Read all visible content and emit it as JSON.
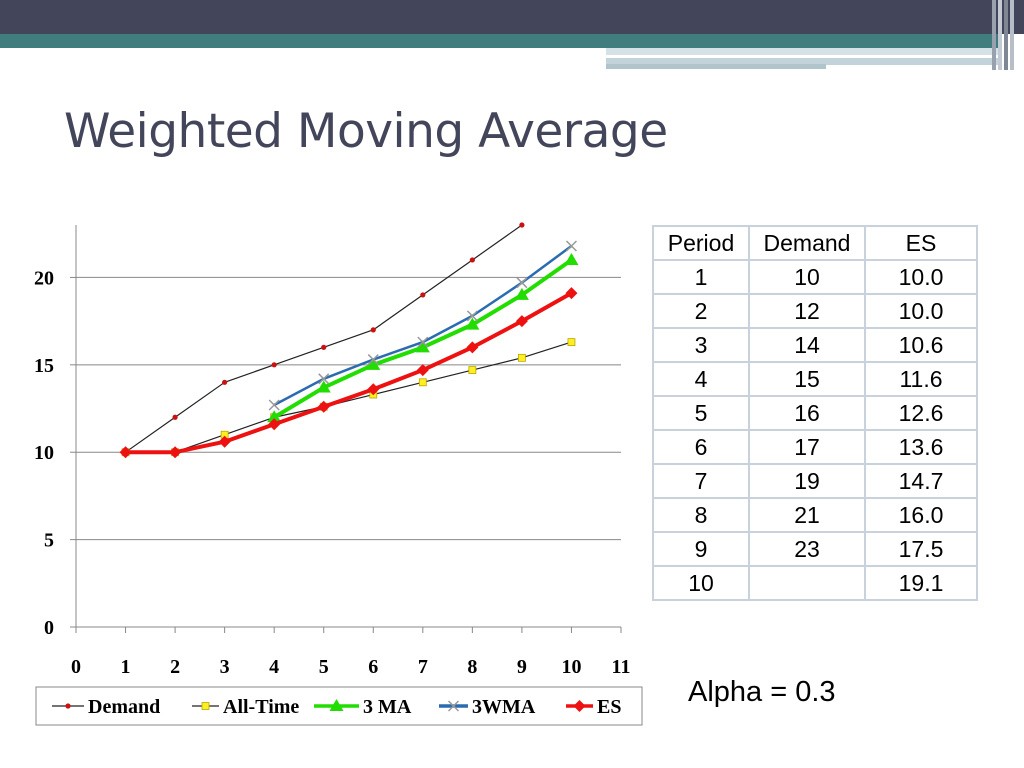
{
  "slide": {
    "title": "Weighted Moving Average",
    "alpha_label": "Alpha = 0.3"
  },
  "table": {
    "headers": [
      "Period",
      "Demand",
      "ES"
    ],
    "rows": [
      [
        "1",
        "10",
        "10.0"
      ],
      [
        "2",
        "12",
        "10.0"
      ],
      [
        "3",
        "14",
        "10.6"
      ],
      [
        "4",
        "15",
        "11.6"
      ],
      [
        "5",
        "16",
        "12.6"
      ],
      [
        "6",
        "17",
        "13.6"
      ],
      [
        "7",
        "19",
        "14.7"
      ],
      [
        "8",
        "21",
        "16.0"
      ],
      [
        "9",
        "23",
        "17.5"
      ],
      [
        "10",
        "",
        "19.1"
      ]
    ]
  },
  "chart_data": {
    "type": "line",
    "title": "",
    "xlabel": "",
    "ylabel": "",
    "xlim": [
      0,
      11
    ],
    "ylim": [
      0,
      23
    ],
    "x_ticks": [
      0,
      1,
      2,
      3,
      4,
      5,
      6,
      7,
      8,
      9,
      10,
      11
    ],
    "y_ticks": [
      0,
      5,
      10,
      15,
      20
    ],
    "grid": "horizontal",
    "legend_position": "bottom",
    "series": [
      {
        "name": "Demand",
        "color": "#222222",
        "marker": "dot",
        "marker_color": "#cc1111",
        "line_width": 1.2,
        "x": [
          1,
          2,
          3,
          4,
          5,
          6,
          7,
          8,
          9
        ],
        "values": [
          10,
          12,
          14,
          15,
          16,
          17,
          19,
          21,
          23
        ]
      },
      {
        "name": "All-Time",
        "color": "#222222",
        "marker": "square",
        "marker_color": "#ffee22",
        "line_width": 1.2,
        "x": [
          1,
          2,
          3,
          4,
          5,
          6,
          7,
          8,
          9,
          10
        ],
        "values": [
          10,
          10,
          11,
          12,
          12.6,
          13.3,
          14,
          14.7,
          15.4,
          16.3
        ]
      },
      {
        "name": "3 MA",
        "color": "#22dd00",
        "marker": "triangle",
        "marker_color": "#22dd00",
        "line_width": 4,
        "x": [
          4,
          5,
          6,
          7,
          8,
          9,
          10
        ],
        "values": [
          12,
          13.7,
          15,
          16,
          17.3,
          19,
          21
        ]
      },
      {
        "name": "3WMA",
        "color": "#2b6cb0",
        "marker": "x",
        "marker_color": "#999999",
        "line_width": 2.5,
        "x": [
          4,
          5,
          6,
          7,
          8,
          9,
          10
        ],
        "values": [
          12.7,
          14.2,
          15.3,
          16.3,
          17.8,
          19.7,
          21.8
        ]
      },
      {
        "name": "ES",
        "color": "#ee1111",
        "marker": "diamond",
        "marker_color": "#ee1111",
        "line_width": 4,
        "x": [
          1,
          2,
          3,
          4,
          5,
          6,
          7,
          8,
          9,
          10
        ],
        "values": [
          10,
          10,
          10.6,
          11.6,
          12.6,
          13.6,
          14.7,
          16.0,
          17.5,
          19.1
        ]
      }
    ]
  }
}
